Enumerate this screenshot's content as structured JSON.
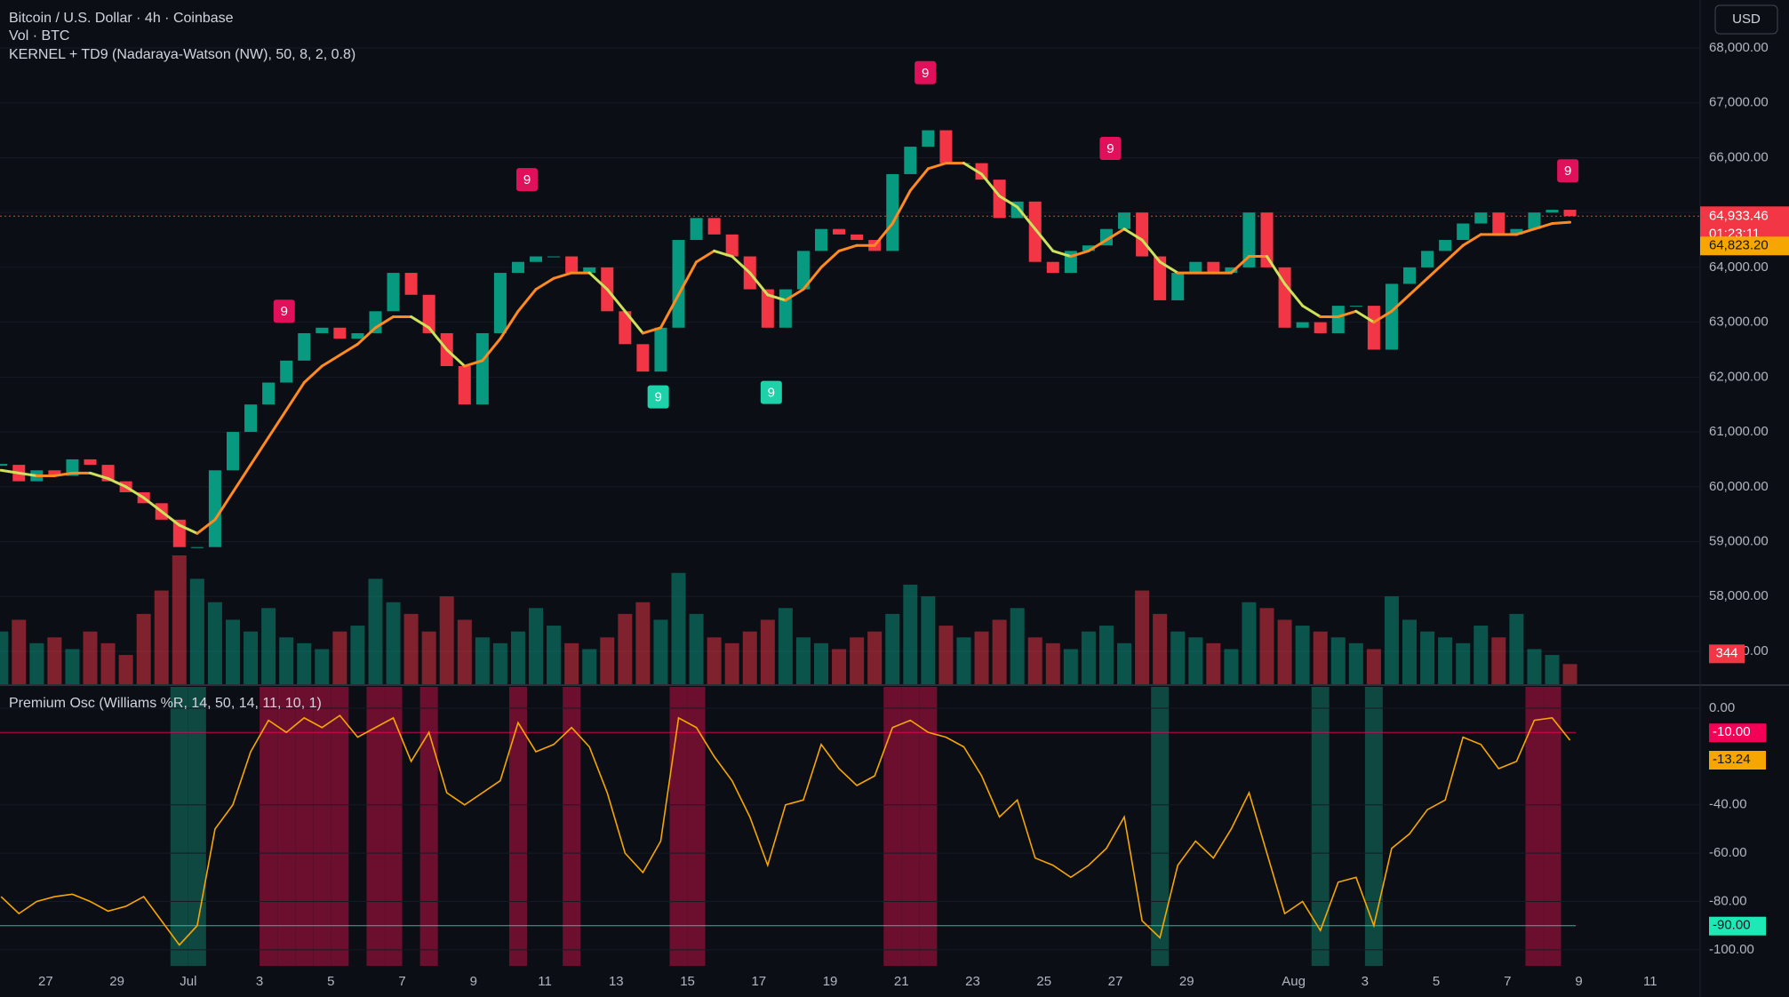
{
  "chart_data": [
    {
      "type": "candlestick",
      "title": "Bitcoin / U.S. Dollar · 4h · Coinbase",
      "volume_title": "Vol · BTC",
      "indicator_title": "KERNEL + TD9 (Nadaraya-Watson (NW), 50, 8, 2, 0.8)",
      "currency": "USD",
      "x": [
        -1.25,
        -0.75,
        -0.25,
        0.25,
        0.75,
        1.25,
        1.75,
        2.25,
        2.75,
        3.25,
        3.75,
        4.25,
        4.75,
        5.25,
        5.75,
        6.25,
        6.75,
        7.25,
        7.75,
        8.25,
        8.75,
        9.25,
        9.75,
        10.25,
        10.75,
        11.25,
        11.75,
        12.25,
        12.75,
        13.25,
        13.75,
        14.25,
        14.75,
        15.25,
        15.75,
        16.25,
        16.75,
        17.25,
        17.75,
        18.25,
        18.75,
        19.25,
        19.75,
        20.25,
        20.75,
        21.25,
        21.75,
        22.25,
        22.75,
        23.25,
        23.75,
        24.25,
        24.75,
        25.25,
        25.75,
        26.25,
        26.75,
        27.25,
        27.75,
        28.25,
        28.75,
        29.25,
        29.75,
        30.25,
        30.75,
        31.25,
        31.75,
        32.25,
        32.75,
        33.25,
        33.75,
        34.25,
        34.75,
        35.25,
        35.75,
        36.25,
        36.75,
        37.25,
        37.75,
        38.25,
        38.75,
        39.25,
        39.75,
        40.25,
        40.75,
        41.25,
        41.75,
        42.25,
        42.75
      ],
      "close": [
        60400,
        60100,
        60300,
        60200,
        60500,
        60400,
        60100,
        59900,
        59700,
        59400,
        58900,
        58900,
        60300,
        61000,
        61500,
        61900,
        62300,
        62800,
        62900,
        62700,
        62800,
        63200,
        63900,
        63500,
        62800,
        62200,
        61500,
        62800,
        63900,
        64100,
        64200,
        64200,
        63900,
        64000,
        63200,
        62600,
        62100,
        62900,
        64500,
        64900,
        64600,
        64200,
        63600,
        62900,
        63600,
        64300,
        64700,
        64600,
        64500,
        64300,
        65700,
        66200,
        66500,
        65900,
        65900,
        65600,
        64900,
        65200,
        64100,
        63900,
        64300,
        64400,
        64700,
        65000,
        64200,
        63400,
        63900,
        64100,
        63900,
        64000,
        65000,
        64000,
        62900,
        63000,
        62800,
        63300,
        63300,
        62500,
        63700,
        64000,
        64300,
        64500,
        64800,
        65000,
        64600,
        64700,
        65000,
        65050,
        64933.46
      ],
      "last_label": "64,933.46",
      "countdown": "01:23:11",
      "up_color": "#089981",
      "down_color": "#f23645",
      "kernel": {
        "values": [
          60300,
          60250,
          60200,
          60200,
          60250,
          60250,
          60150,
          60000,
          59800,
          59550,
          59300,
          59150,
          59400,
          59900,
          60400,
          60900,
          61400,
          61900,
          62200,
          62400,
          62600,
          62900,
          63100,
          63100,
          62900,
          62500,
          62200,
          62300,
          62700,
          63200,
          63600,
          63800,
          63900,
          63900,
          63600,
          63200,
          62800,
          62900,
          63500,
          64100,
          64300,
          64200,
          63900,
          63500,
          63400,
          63600,
          64000,
          64300,
          64400,
          64400,
          64800,
          65400,
          65800,
          65900,
          65900,
          65700,
          65300,
          65100,
          64700,
          64300,
          64200,
          64300,
          64500,
          64700,
          64500,
          64100,
          63900,
          63900,
          63900,
          63900,
          64200,
          64200,
          63700,
          63300,
          63100,
          63100,
          63200,
          63000,
          63200,
          63500,
          63800,
          64100,
          64400,
          64600,
          64600,
          64600,
          64700,
          64800,
          64823.2
        ],
        "up_color": "#ff8a1f",
        "down_color": "#cde25a",
        "last_label": "64,823.20",
        "badge_color": "#f7a600"
      },
      "volume": {
        "values": [
          900,
          1100,
          700,
          800,
          600,
          900,
          700,
          500,
          1200,
          1600,
          2200,
          1800,
          1400,
          1100,
          900,
          1300,
          800,
          700,
          600,
          900,
          1000,
          1800,
          1400,
          1200,
          900,
          1500,
          1100,
          800,
          700,
          900,
          1300,
          1000,
          700,
          600,
          800,
          1200,
          1400,
          1100,
          1900,
          1200,
          800,
          700,
          900,
          1100,
          1300,
          800,
          700,
          600,
          800,
          900,
          1200,
          1700,
          1500,
          1000,
          800,
          900,
          1100,
          1300,
          800,
          700,
          600,
          900,
          1000,
          700,
          1600,
          1200,
          900,
          800,
          700,
          600,
          1400,
          1300,
          1100,
          1000,
          900,
          800,
          700,
          600,
          1500,
          1100,
          900,
          800,
          700,
          1000,
          800,
          1200,
          600,
          500,
          344
        ],
        "last_label": "344"
      },
      "td9": [
        {
          "label": "9",
          "x": 6.69,
          "y": 63200,
          "color": "#e0105a"
        },
        {
          "label": "9",
          "x": 13.5,
          "y": 65600,
          "color": "#e0105a"
        },
        {
          "label": "9",
          "x": 24.67,
          "y": 67550,
          "color": "#e0105a"
        },
        {
          "label": "9",
          "x": 29.86,
          "y": 66170,
          "color": "#e0105a"
        },
        {
          "label": "9",
          "x": 42.69,
          "y": 65760,
          "color": "#e0105a"
        },
        {
          "label": "9",
          "x": 17.18,
          "y": 61640,
          "color": "#1fd1a8"
        },
        {
          "label": "9",
          "x": 20.35,
          "y": 61720,
          "color": "#1fd1a8"
        }
      ],
      "xlim": [
        -1.28,
        46.4
      ],
      "ylim": [
        56400,
        68875
      ],
      "yticks": [
        {
          "value": 57000,
          "label": "57,000.00"
        },
        {
          "value": 58000,
          "label": "58,000.00"
        },
        {
          "value": 59000,
          "label": "59,000.00"
        },
        {
          "value": 60000,
          "label": "60,000.00"
        },
        {
          "value": 61000,
          "label": "61,000.00"
        },
        {
          "value": 62000,
          "label": "62,000.00"
        },
        {
          "value": 63000,
          "label": "63,000.00"
        },
        {
          "value": 64000,
          "label": "64,000.00"
        },
        {
          "value": 65000,
          "label": "65,000.00"
        },
        {
          "value": 66000,
          "label": "66,000.00"
        },
        {
          "value": 67000,
          "label": "67,000.00"
        },
        {
          "value": 68000,
          "label": "68,000.00"
        }
      ],
      "grid": true
    },
    {
      "type": "line",
      "title": "Premium Osc (Williams %R, 14, 50, 14, 11, 10, 1)",
      "x": [
        -1.25,
        -0.75,
        -0.25,
        0.25,
        0.75,
        1.25,
        1.75,
        2.25,
        2.75,
        3.25,
        3.75,
        4.25,
        4.75,
        5.25,
        5.75,
        6.25,
        6.75,
        7.25,
        7.75,
        8.25,
        8.75,
        9.25,
        9.75,
        10.25,
        10.75,
        11.25,
        11.75,
        12.25,
        12.75,
        13.25,
        13.75,
        14.25,
        14.75,
        15.25,
        15.75,
        16.25,
        16.75,
        17.25,
        17.75,
        18.25,
        18.75,
        19.25,
        19.75,
        20.25,
        20.75,
        21.25,
        21.75,
        22.25,
        22.75,
        23.25,
        23.75,
        24.25,
        24.75,
        25.25,
        25.75,
        26.25,
        26.75,
        27.25,
        27.75,
        28.25,
        28.75,
        29.25,
        29.75,
        30.25,
        30.75,
        31.25,
        31.75,
        32.25,
        32.75,
        33.25,
        33.75,
        34.25,
        34.75,
        35.25,
        35.75,
        36.25,
        36.75,
        37.25,
        37.75,
        38.25,
        38.75,
        39.25,
        39.75,
        40.25,
        40.75,
        41.25,
        41.75,
        42.25,
        42.75
      ],
      "values": [
        -78,
        -85,
        -80,
        -78,
        -77,
        -80,
        -84,
        -82,
        -78,
        -88,
        -98,
        -90,
        -50,
        -40,
        -18,
        -5,
        -10,
        -4,
        -8,
        -3,
        -12,
        -8,
        -4,
        -22,
        -10,
        -35,
        -40,
        -35,
        -30,
        -6,
        -18,
        -15,
        -8,
        -16,
        -35,
        -60,
        -68,
        -55,
        -4,
        -8,
        -20,
        -30,
        -45,
        -65,
        -40,
        -38,
        -15,
        -25,
        -32,
        -28,
        -8,
        -5,
        -10,
        -12,
        -16,
        -28,
        -45,
        -38,
        -62,
        -65,
        -70,
        -65,
        -58,
        -45,
        -88,
        -95,
        -65,
        -55,
        -62,
        -50,
        -35,
        -60,
        -85,
        -80,
        -92,
        -72,
        -70,
        -90,
        -58,
        -52,
        -42,
        -38,
        -12,
        -15,
        -25,
        -22,
        -5,
        -4,
        -13.24
      ],
      "value_labels_last": "-13.24",
      "color": "#f7a600",
      "levels": [
        {
          "value": -10,
          "label": "-10.00",
          "color": "#f50057",
          "zone_color": "#8c1038"
        },
        {
          "value": -90,
          "label": "-90.00",
          "color": "#1de9b6",
          "zone_color": "#0f5c4f"
        }
      ],
      "xlim": [
        -1.28,
        46.4
      ],
      "ylim": [
        -107.4,
        9.2
      ],
      "yticks": [
        {
          "value": 0,
          "label": "0.00"
        },
        {
          "value": -40,
          "label": "-40.00"
        },
        {
          "value": -60,
          "label": "-60.00"
        },
        {
          "value": -80,
          "label": "-80.00"
        },
        {
          "value": -100,
          "label": "-100.00"
        }
      ],
      "xticks": [
        {
          "value": 0,
          "label": "27"
        },
        {
          "value": 2,
          "label": "29"
        },
        {
          "value": 4,
          "label": "Jul"
        },
        {
          "value": 6,
          "label": "3"
        },
        {
          "value": 8,
          "label": "5"
        },
        {
          "value": 10,
          "label": "7"
        },
        {
          "value": 12,
          "label": "9"
        },
        {
          "value": 14,
          "label": "11"
        },
        {
          "value": 16,
          "label": "13"
        },
        {
          "value": 18,
          "label": "15"
        },
        {
          "value": 20,
          "label": "17"
        },
        {
          "value": 22,
          "label": "19"
        },
        {
          "value": 24,
          "label": "21"
        },
        {
          "value": 26,
          "label": "23"
        },
        {
          "value": 28,
          "label": "25"
        },
        {
          "value": 30,
          "label": "27"
        },
        {
          "value": 32,
          "label": "29"
        },
        {
          "value": 35,
          "label": "Aug"
        },
        {
          "value": 37,
          "label": "3"
        },
        {
          "value": 39,
          "label": "5"
        },
        {
          "value": 41,
          "label": "7"
        },
        {
          "value": 43,
          "label": "9"
        },
        {
          "value": 45,
          "label": "11"
        }
      ]
    }
  ]
}
